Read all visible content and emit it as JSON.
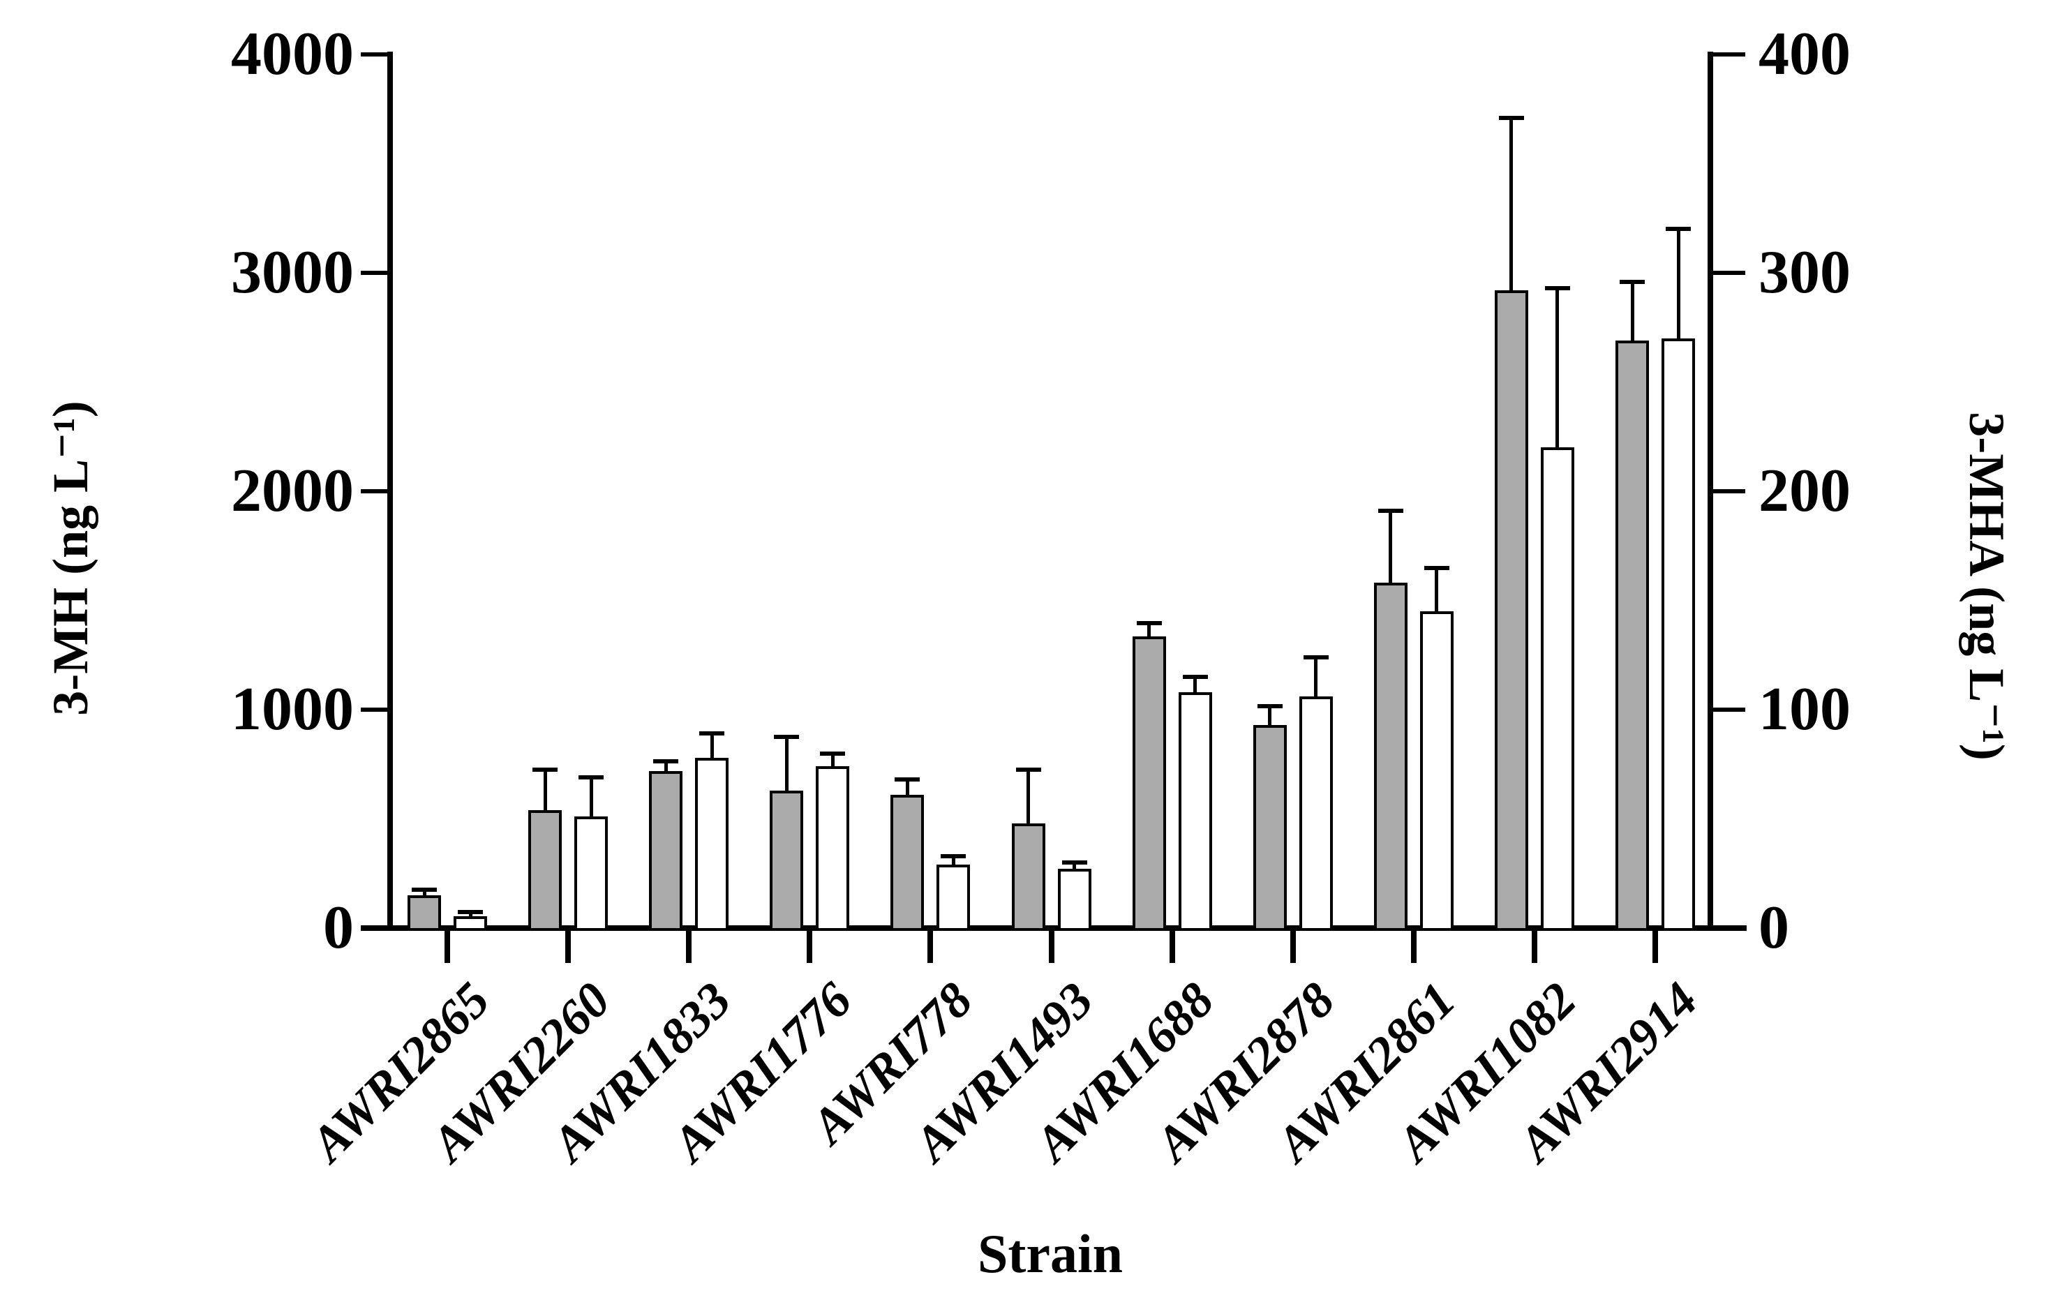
{
  "chart_data": {
    "type": "bar",
    "title": "",
    "categories": [
      "AWRI2865",
      "AWRI2260",
      "AWRI1833",
      "AWRI1776",
      "AWRI778",
      "AWRI1493",
      "AWRI1688",
      "AWRI2878",
      "AWRI2861",
      "AWRI1082",
      "AWRI2914"
    ],
    "series": [
      {
        "name": "3-MH",
        "axis": "left",
        "fill": "#ababab",
        "values": [
          150,
          540,
          720,
          630,
          610,
          480,
          1335,
          930,
          1580,
          2920,
          2690
        ],
        "errors_plus": [
          25,
          185,
          45,
          245,
          70,
          245,
          60,
          85,
          330,
          790,
          270
        ]
      },
      {
        "name": "3-MHA",
        "axis": "right",
        "fill": "#ffffff",
        "values": [
          5.5,
          51,
          78,
          74,
          29,
          27,
          108,
          106,
          145,
          220,
          270
        ],
        "errors_plus": [
          2,
          18,
          11,
          6,
          4,
          3,
          7,
          18,
          20,
          73,
          50
        ]
      }
    ],
    "left_axis": {
      "label": "3-MH (ng L⁻¹)",
      "min": 0,
      "max": 4000,
      "tick_step": 1000,
      "tick_labels": [
        "0",
        "1000",
        "2000",
        "3000",
        "4000"
      ]
    },
    "right_axis": {
      "label": "3-MHA (ng L⁻¹)",
      "min": 0,
      "max": 400,
      "tick_step": 100,
      "tick_labels": [
        "0",
        "100",
        "200",
        "300",
        "400"
      ]
    },
    "x_axis": {
      "label": "Strain"
    },
    "legend": "none",
    "grid": false,
    "error_bar_color": "#000000",
    "bar_border_color": "#000000"
  }
}
